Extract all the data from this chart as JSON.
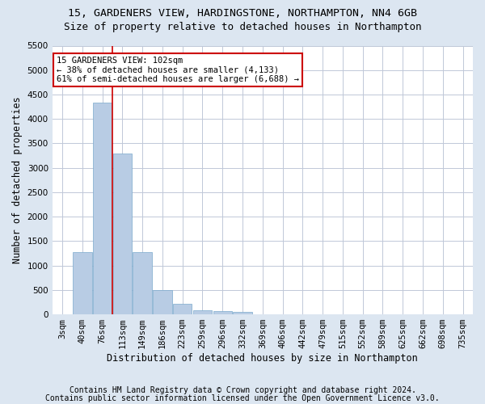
{
  "title": "15, GARDENERS VIEW, HARDINGSTONE, NORTHAMPTON, NN4 6GB",
  "subtitle": "Size of property relative to detached houses in Northampton",
  "xlabel": "Distribution of detached houses by size in Northampton",
  "ylabel": "Number of detached properties",
  "categories": [
    "3sqm",
    "40sqm",
    "76sqm",
    "113sqm",
    "149sqm",
    "186sqm",
    "223sqm",
    "259sqm",
    "296sqm",
    "332sqm",
    "369sqm",
    "406sqm",
    "442sqm",
    "479sqm",
    "515sqm",
    "552sqm",
    "589sqm",
    "625sqm",
    "662sqm",
    "698sqm",
    "735sqm"
  ],
  "values": [
    0,
    1270,
    4330,
    3300,
    1280,
    490,
    210,
    90,
    65,
    50,
    0,
    0,
    0,
    0,
    0,
    0,
    0,
    0,
    0,
    0,
    0
  ],
  "bar_color": "#b8cce4",
  "bar_edgecolor": "#7aaacc",
  "vline_color": "#cc0000",
  "vline_pos": 2.5,
  "ylim": [
    0,
    5500
  ],
  "yticks": [
    0,
    500,
    1000,
    1500,
    2000,
    2500,
    3000,
    3500,
    4000,
    4500,
    5000,
    5500
  ],
  "annotation_line1": "15 GARDENERS VIEW: 102sqm",
  "annotation_line2": "← 38% of detached houses are smaller (4,133)",
  "annotation_line3": "61% of semi-detached houses are larger (6,688) →",
  "annotation_box_color": "#ffffff",
  "annotation_box_edgecolor": "#cc0000",
  "footer1": "Contains HM Land Registry data © Crown copyright and database right 2024.",
  "footer2": "Contains public sector information licensed under the Open Government Licence v3.0.",
  "background_color": "#dce6f1",
  "plot_bg_color": "#ffffff",
  "grid_color": "#c0c8d8",
  "title_fontsize": 9.5,
  "subtitle_fontsize": 9,
  "axis_label_fontsize": 8.5,
  "tick_fontsize": 7.5,
  "annotation_fontsize": 7.5,
  "footer_fontsize": 7
}
